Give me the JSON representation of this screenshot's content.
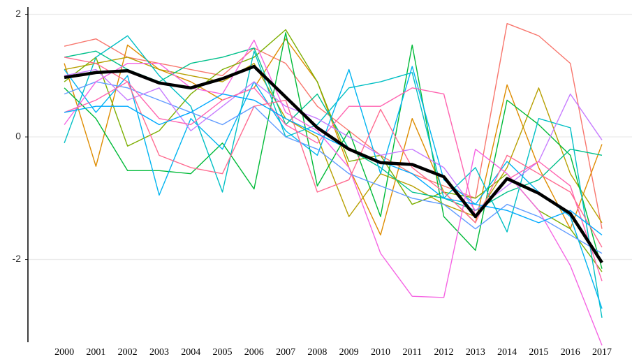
{
  "chart_data": {
    "type": "line",
    "x": [
      2000,
      2001,
      2002,
      2003,
      2004,
      2005,
      2006,
      2007,
      2008,
      2009,
      2010,
      2011,
      2012,
      2013,
      2014,
      2015,
      2016,
      2017
    ],
    "xticks": [
      2000,
      2001,
      2002,
      2003,
      2004,
      2005,
      2006,
      2007,
      2008,
      2009,
      2010,
      2011,
      2012,
      2013,
      2014,
      2015,
      2016,
      2017
    ],
    "xlim": [
      1998.85,
      2017.95
    ],
    "ylim": [
      -3.35,
      2.12
    ],
    "yticks": [
      -2,
      0,
      2
    ],
    "grid": true,
    "series": [
      {
        "color": "#F8766D",
        "values": [
          1.48,
          1.6,
          1.3,
          1.2,
          1.1,
          1.0,
          1.45,
          1.2,
          0.5,
          0.1,
          -0.3,
          -0.6,
          -0.8,
          -1.0,
          1.85,
          1.65,
          1.2,
          -1.5
        ]
      },
      {
        "color": "#DE8C00",
        "values": [
          1.2,
          -0.48,
          1.5,
          1.1,
          0.9,
          0.6,
          0.8,
          1.6,
          0.9,
          -0.5,
          -1.6,
          0.3,
          -0.9,
          -1.4,
          0.85,
          -0.5,
          -1.5,
          -0.12
        ]
      },
      {
        "color": "#B79F00",
        "values": [
          1.1,
          1.2,
          1.3,
          1.1,
          1.0,
          0.9,
          1.2,
          0.3,
          0.0,
          -1.3,
          -0.6,
          -0.8,
          -1.1,
          -1.3,
          -0.5,
          0.8,
          -0.6,
          -1.4
        ]
      },
      {
        "color": "#7CAE00",
        "values": [
          0.9,
          1.3,
          -0.15,
          0.1,
          0.7,
          1.1,
          1.3,
          1.75,
          0.9,
          -0.4,
          -0.3,
          -1.1,
          -0.9,
          -1.0,
          -0.6,
          -1.2,
          -1.5,
          -2.2
        ]
      },
      {
        "color": "#00BA38",
        "values": [
          0.8,
          0.3,
          -0.55,
          -0.55,
          -0.6,
          -0.1,
          -0.85,
          1.7,
          -0.8,
          0.1,
          -1.3,
          1.5,
          -1.3,
          -1.85,
          0.6,
          0.2,
          -0.3,
          -2.15
        ]
      },
      {
        "color": "#00C08B",
        "values": [
          1.3,
          1.4,
          1.1,
          0.9,
          1.2,
          1.3,
          1.45,
          0.2,
          0.7,
          -0.2,
          -0.5,
          -0.9,
          -1.0,
          -1.2,
          -0.9,
          -0.7,
          -0.2,
          -0.3
        ]
      },
      {
        "color": "#00BFC4",
        "values": [
          -0.1,
          1.3,
          1.65,
          1.0,
          0.5,
          -0.9,
          1.4,
          0.0,
          0.2,
          0.8,
          0.9,
          1.05,
          -1.0,
          -0.5,
          -1.55,
          0.3,
          0.15,
          -2.95
        ]
      },
      {
        "color": "#00B4F0",
        "values": [
          1.1,
          0.4,
          1.0,
          -0.95,
          0.3,
          -0.2,
          0.9,
          0.1,
          -0.3,
          1.1,
          -0.6,
          1.15,
          -0.7,
          -1.1,
          -0.4,
          -0.9,
          -1.3,
          -2.8
        ]
      },
      {
        "color": "#619CFF",
        "values": [
          0.7,
          0.9,
          0.8,
          0.6,
          0.4,
          0.2,
          0.5,
          0.0,
          -0.2,
          -0.6,
          -0.8,
          -1.0,
          -1.1,
          -1.5,
          -1.1,
          -1.3,
          -1.6,
          -1.9
        ]
      },
      {
        "color": "#C77CFF",
        "values": [
          1.0,
          1.1,
          0.6,
          0.8,
          0.1,
          0.5,
          0.9,
          0.5,
          0.3,
          0.0,
          -0.3,
          -0.2,
          -0.5,
          -1.2,
          -0.8,
          -0.4,
          0.7,
          -0.05
        ]
      },
      {
        "color": "#F564E3",
        "values": [
          0.2,
          0.9,
          1.2,
          1.2,
          0.8,
          0.7,
          1.58,
          0.4,
          0.1,
          -0.5,
          -1.9,
          -2.6,
          -2.62,
          -0.2,
          -0.6,
          -1.2,
          -2.1,
          -3.4
        ]
      },
      {
        "color": "#FF64B0",
        "values": [
          0.4,
          0.6,
          0.9,
          0.3,
          0.2,
          0.6,
          0.8,
          0.2,
          -0.1,
          0.5,
          0.5,
          0.8,
          0.7,
          -1.3,
          -0.7,
          -0.4,
          -0.8,
          -2.35
        ]
      },
      {
        "color": "#FF6C91",
        "values": [
          1.3,
          1.2,
          0.9,
          -0.3,
          -0.5,
          -0.6,
          0.5,
          0.6,
          -0.9,
          -0.7,
          0.45,
          -0.5,
          -0.9,
          -1.4,
          -0.3,
          -0.6,
          -0.9,
          -1.8
        ]
      },
      {
        "color": "#00A9FF",
        "values": [
          0.4,
          0.5,
          0.5,
          0.2,
          0.4,
          0.7,
          0.6,
          0.3,
          0.05,
          -0.2,
          -0.4,
          -0.6,
          -1.0,
          -1.1,
          -1.2,
          -1.4,
          -1.2,
          -1.6
        ]
      },
      {
        "color": "#000000",
        "line_width": 4.5,
        "values": [
          0.97,
          1.05,
          1.08,
          0.88,
          0.8,
          0.95,
          1.15,
          0.65,
          0.15,
          -0.2,
          -0.42,
          -0.45,
          -0.65,
          -1.3,
          -0.68,
          -0.92,
          -1.25,
          -2.05
        ]
      }
    ]
  }
}
